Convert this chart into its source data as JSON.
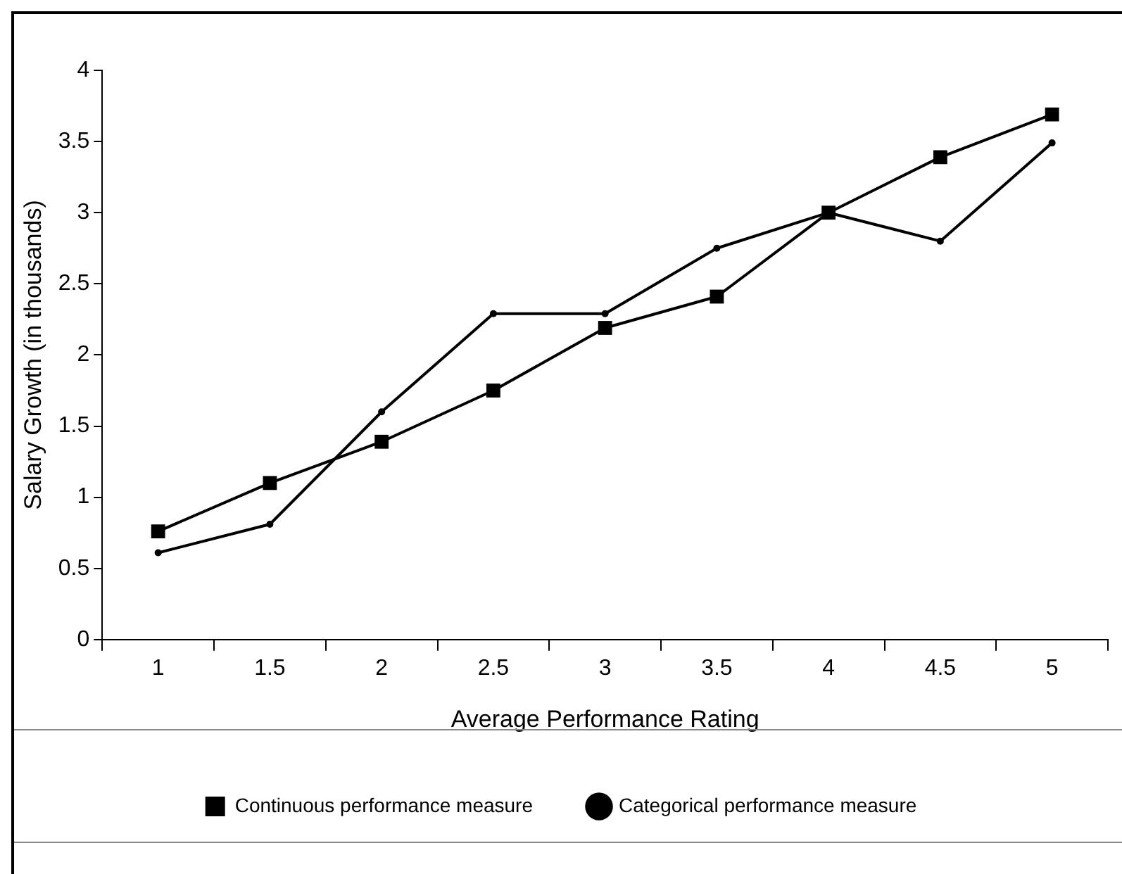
{
  "chart_data": {
    "type": "line",
    "xlabel": "Average Performance Rating",
    "ylabel": "Salary Growth (in thousands)",
    "categories": [
      "1",
      "1.5",
      "2",
      "2.5",
      "3",
      "3.5",
      "4",
      "4.5",
      "5"
    ],
    "series": [
      {
        "name": "Continuous performance measure",
        "color": "#000000",
        "marker": "square",
        "values": [
          0.76,
          1.1,
          1.39,
          1.75,
          2.19,
          2.41,
          3.0,
          3.39,
          3.69
        ]
      },
      {
        "name": "Categorical performance measure",
        "color": "#000000",
        "marker": "circle",
        "values": [
          0.61,
          0.81,
          1.6,
          2.29,
          2.29,
          2.75,
          3.0,
          2.8,
          3.49
        ]
      }
    ],
    "ylim": [
      0,
      4
    ],
    "yticks": [
      0,
      0.5,
      1,
      1.5,
      2,
      2.5,
      3,
      3.5,
      4
    ],
    "grid": false,
    "legend": "bottom",
    "line_style": "solid"
  }
}
